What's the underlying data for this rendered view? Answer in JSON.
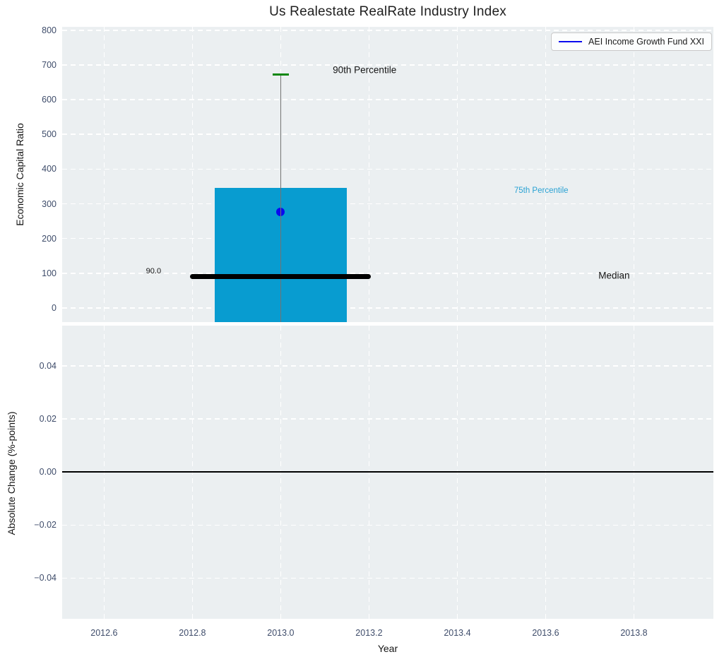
{
  "figure": {
    "title": "Us Realestate RealRate Industry Index"
  },
  "style": {
    "figure_bg": "#ffffff",
    "axes_bg": "#ebeff1",
    "grid_color": "#ffffff",
    "tick_color": "#3e4c6a",
    "text_color": "#151515",
    "bar_fill": "#089cd0",
    "whisker_color": "#737373",
    "cap_color": "#0f870f",
    "series_color": "#0a0aee",
    "median_color": "#000000",
    "zero_line_color": "#000000"
  },
  "chart_data": [
    {
      "type": "box",
      "title": "Us Realestate RealRate Industry Index",
      "ylabel": "Economic Capital Ratio",
      "xlabel": "",
      "xlim": [
        2012.505,
        2013.98
      ],
      "ylim": [
        -41,
        810
      ],
      "yticks": [
        0,
        100,
        200,
        300,
        400,
        500,
        600,
        700,
        800
      ],
      "ytick_labels": [
        "0",
        "100",
        "200",
        "300",
        "400",
        "500",
        "600",
        "700",
        "800"
      ],
      "xticks": [
        2012.6,
        2012.8,
        2013.0,
        2013.2,
        2013.4,
        2013.6,
        2013.8
      ],
      "xtick_labels": [],
      "grid": "white-dashed",
      "legend": {
        "position": "upper-right",
        "entries": [
          {
            "label": "AEI Income Growth Fund XXI",
            "color": "#0a0aee",
            "marker": "line"
          }
        ]
      },
      "box": {
        "x": 2013.0,
        "bar_width": 0.3,
        "bar_top_75th_percentile": 345,
        "bar_extends_below_axis": true,
        "median": 90,
        "median_line_halfspan": 0.2,
        "whisker_90th_percentile": 673,
        "cap_halfwidth": 0.019,
        "fund_point": {
          "x": 2013.0,
          "y": 276
        }
      },
      "annotations": [
        {
          "name": "p90-percentile-label",
          "text": "90th Percentile",
          "x": 2013.19,
          "y": 686,
          "size": 13.5,
          "color": "#151515"
        },
        {
          "name": "p75-percentile-label",
          "text": "75th Percentile",
          "x": 2013.59,
          "y": 338,
          "size": 11.5,
          "color": "#2aa2d3"
        },
        {
          "name": "median-label",
          "text": "Median",
          "x": 2013.755,
          "y": 94,
          "size": 13.5,
          "color": "#151515"
        },
        {
          "name": "median-value-label",
          "text": "90.0",
          "x": 2012.712,
          "y": 106,
          "size": 11,
          "color": "#151515"
        }
      ]
    },
    {
      "type": "line",
      "ylabel": "Absolute Change (%-points)",
      "xlabel": "Year",
      "xlim": [
        2012.505,
        2013.98
      ],
      "ylim": [
        -0.0553,
        0.0551
      ],
      "yticks": [
        -0.04,
        -0.02,
        0,
        0.02,
        0.04
      ],
      "ytick_labels": [
        "−0.04",
        "−0.02",
        "0.00",
        "0.02",
        "0.04"
      ],
      "xticks": [
        2012.6,
        2012.8,
        2013.0,
        2013.2,
        2013.4,
        2013.6,
        2013.8
      ],
      "xtick_labels": [
        "2012.6",
        "2012.8",
        "2013.0",
        "2013.2",
        "2013.4",
        "2013.6",
        "2013.8"
      ],
      "grid": "white-dashed",
      "zero_line": {
        "y": 0.0,
        "color": "#000000"
      }
    }
  ]
}
